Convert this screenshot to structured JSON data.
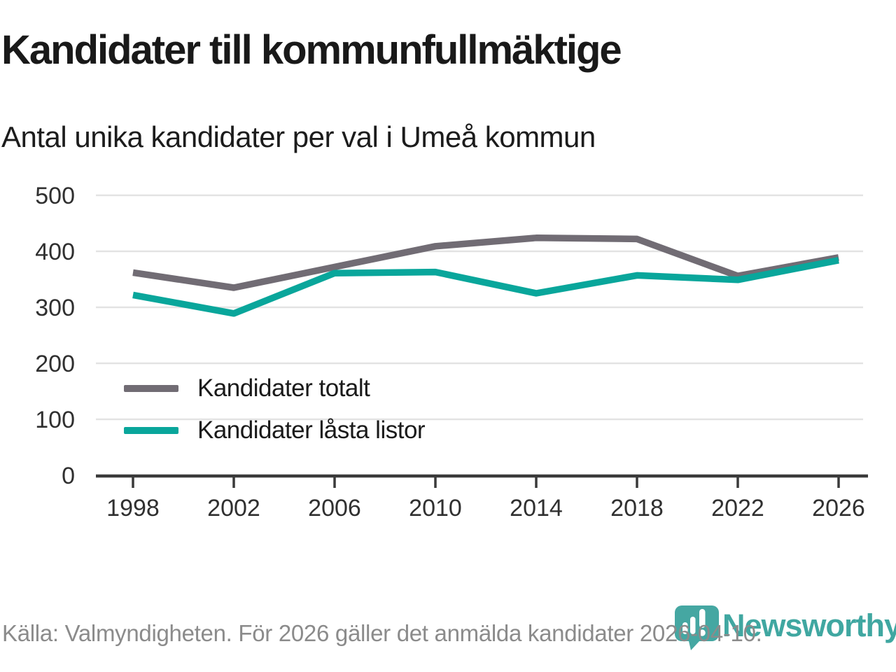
{
  "header": {
    "title": "Kandidater till kommunfullmäktige",
    "subtitle": "Antal unika kandidater per val i Umeå kommun"
  },
  "chart_data": {
    "type": "line",
    "title": "Kandidater till kommunfullmäktige",
    "subtitle": "Antal unika kandidater per val i Umeå kommun",
    "x": [
      1998,
      2002,
      2006,
      2010,
      2014,
      2018,
      2022,
      2026
    ],
    "series": [
      {
        "name": "Kandidater totalt",
        "color": "#716c74",
        "values": [
          362,
          335,
          372,
          409,
          424,
          422,
          356,
          389
        ]
      },
      {
        "name": "Kandidater låsta listor",
        "color": "#09a69b",
        "values": [
          322,
          289,
          361,
          363,
          325,
          357,
          349,
          384
        ]
      }
    ],
    "ylim": [
      0,
      500
    ],
    "yticks": [
      0,
      100,
      200,
      300,
      400,
      500
    ],
    "grid": true,
    "legend_position": "inside-left",
    "gridline_color": "#e3e3e3",
    "axis_color": "#3a3a3a"
  },
  "footer": {
    "source_note": "Källa: Valmyndigheten. För 2026 gäller det anmälda kandidater 2026-04-10.",
    "brand_name": "Newsworthy",
    "brand_color": "#40a7a1"
  }
}
